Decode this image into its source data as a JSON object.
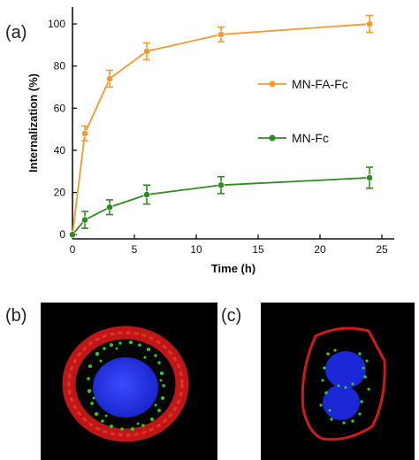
{
  "panels": {
    "a": "(a)",
    "b": "(b)",
    "c": "(c)"
  },
  "colors": {
    "orange": "#f39b2e",
    "green": "#2e8b1f",
    "red": "#d21a1a",
    "blue": "#1a2adf",
    "dot_green": "#33cc22"
  },
  "chart_data": {
    "type": "line",
    "xlabel": "Time (h)",
    "ylabel": "Internalization (%)",
    "xlim": [
      0,
      26
    ],
    "ylim": [
      -2,
      108
    ],
    "xticks": [
      0,
      5,
      10,
      15,
      20,
      25
    ],
    "yticks": [
      0,
      20,
      40,
      60,
      80,
      100
    ],
    "legend_position": "right",
    "series": [
      {
        "name": "MN-FA-Fc",
        "color": "#f39b2e",
        "x": [
          0,
          1,
          3,
          6,
          12,
          24
        ],
        "y": [
          0,
          48,
          74,
          87,
          95,
          100
        ],
        "err": [
          0,
          3.5,
          4,
          4,
          3.5,
          4
        ]
      },
      {
        "name": "MN-Fc",
        "color": "#2e8b1f",
        "x": [
          0,
          1,
          3,
          6,
          12,
          24
        ],
        "y": [
          0,
          7,
          13,
          19,
          23.5,
          27
        ],
        "err": [
          0,
          4,
          3.5,
          4.5,
          4,
          5
        ]
      }
    ]
  }
}
